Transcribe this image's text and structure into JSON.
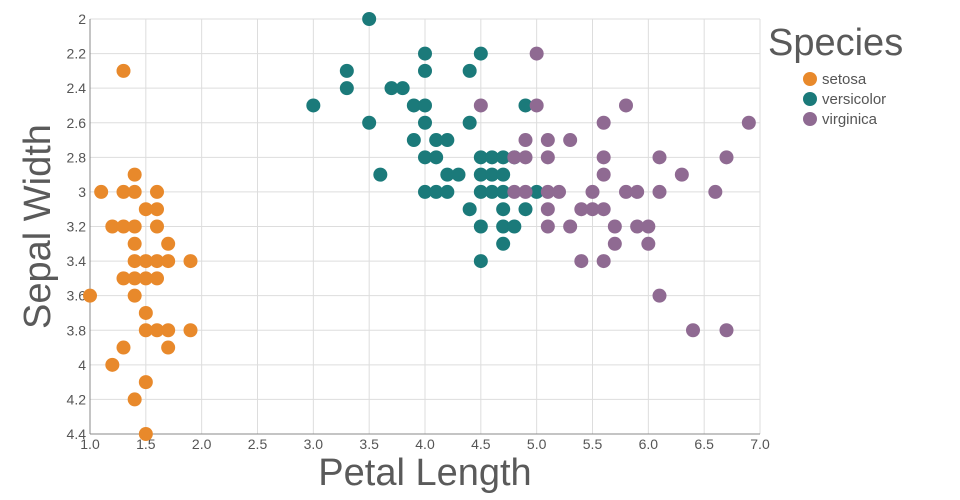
{
  "chart_data": {
    "type": "scatter",
    "xlabel": "Petal Length",
    "ylabel": "Sepal Width",
    "xlim": [
      1.0,
      7.0
    ],
    "ylim": [
      2.0,
      4.4
    ],
    "y_reversed": true,
    "x_ticks": [
      "1.0",
      "1.5",
      "2.0",
      "2.5",
      "3.0",
      "3.5",
      "4.0",
      "4.5",
      "5.0",
      "5.5",
      "6.0",
      "6.5",
      "7.0"
    ],
    "y_ticks": [
      "2",
      "2.2",
      "2.4",
      "2.6",
      "2.8",
      "3",
      "3.2",
      "3.4",
      "3.6",
      "3.8",
      "4",
      "4.2",
      "4.4"
    ],
    "grid": true,
    "legend": {
      "title": "Species",
      "placement": "right"
    },
    "series": [
      {
        "name": "setosa",
        "color": "#e8892b",
        "points": [
          [
            1.3,
            2.3
          ],
          [
            1.1,
            3.0
          ],
          [
            1.3,
            3.0
          ],
          [
            1.4,
            3.0
          ],
          [
            1.6,
            3.0
          ],
          [
            1.4,
            2.9
          ],
          [
            1.5,
            3.1
          ],
          [
            1.6,
            3.1
          ],
          [
            1.2,
            3.2
          ],
          [
            1.3,
            3.2
          ],
          [
            1.4,
            3.2
          ],
          [
            1.6,
            3.2
          ],
          [
            1.4,
            3.3
          ],
          [
            1.7,
            3.3
          ],
          [
            1.4,
            3.4
          ],
          [
            1.5,
            3.4
          ],
          [
            1.6,
            3.4
          ],
          [
            1.7,
            3.4
          ],
          [
            1.9,
            3.4
          ],
          [
            1.3,
            3.5
          ],
          [
            1.4,
            3.5
          ],
          [
            1.5,
            3.5
          ],
          [
            1.6,
            3.5
          ],
          [
            1.0,
            3.6
          ],
          [
            1.4,
            3.6
          ],
          [
            1.5,
            3.7
          ],
          [
            1.5,
            3.8
          ],
          [
            1.6,
            3.8
          ],
          [
            1.7,
            3.8
          ],
          [
            1.9,
            3.8
          ],
          [
            1.3,
            3.9
          ],
          [
            1.7,
            3.9
          ],
          [
            1.2,
            4.0
          ],
          [
            1.5,
            4.1
          ],
          [
            1.4,
            4.2
          ],
          [
            1.5,
            4.4
          ]
        ]
      },
      {
        "name": "versicolor",
        "color": "#1b7a7a",
        "points": [
          [
            3.5,
            2.0
          ],
          [
            4.0,
            2.2
          ],
          [
            4.5,
            2.2
          ],
          [
            3.3,
            2.3
          ],
          [
            4.0,
            2.3
          ],
          [
            4.4,
            2.3
          ],
          [
            3.3,
            2.4
          ],
          [
            3.7,
            2.4
          ],
          [
            3.8,
            2.4
          ],
          [
            3.0,
            2.5
          ],
          [
            3.9,
            2.5
          ],
          [
            4.0,
            2.5
          ],
          [
            4.9,
            2.5
          ],
          [
            3.5,
            2.6
          ],
          [
            4.0,
            2.6
          ],
          [
            4.4,
            2.6
          ],
          [
            3.9,
            2.7
          ],
          [
            4.1,
            2.7
          ],
          [
            4.2,
            2.7
          ],
          [
            4.0,
            2.8
          ],
          [
            4.1,
            2.8
          ],
          [
            4.5,
            2.8
          ],
          [
            4.6,
            2.8
          ],
          [
            4.7,
            2.8
          ],
          [
            4.8,
            2.8
          ],
          [
            3.6,
            2.9
          ],
          [
            4.2,
            2.9
          ],
          [
            4.3,
            2.9
          ],
          [
            4.5,
            2.9
          ],
          [
            4.6,
            2.9
          ],
          [
            4.7,
            2.9
          ],
          [
            4.0,
            3.0
          ],
          [
            4.1,
            3.0
          ],
          [
            4.2,
            3.0
          ],
          [
            4.5,
            3.0
          ],
          [
            4.6,
            3.0
          ],
          [
            4.7,
            3.0
          ],
          [
            5.0,
            3.0
          ],
          [
            4.4,
            3.1
          ],
          [
            4.7,
            3.1
          ],
          [
            4.9,
            3.1
          ],
          [
            4.5,
            3.2
          ],
          [
            4.7,
            3.2
          ],
          [
            4.8,
            3.2
          ],
          [
            4.7,
            3.3
          ],
          [
            4.5,
            3.4
          ]
        ]
      },
      {
        "name": "virginica",
        "color": "#8f6a92",
        "points": [
          [
            5.0,
            2.2
          ],
          [
            4.5,
            2.5
          ],
          [
            5.0,
            2.5
          ],
          [
            5.8,
            2.5
          ],
          [
            5.6,
            2.6
          ],
          [
            6.9,
            2.6
          ],
          [
            4.9,
            2.7
          ],
          [
            5.1,
            2.7
          ],
          [
            5.3,
            2.7
          ],
          [
            4.8,
            2.8
          ],
          [
            4.9,
            2.8
          ],
          [
            5.1,
            2.8
          ],
          [
            5.6,
            2.8
          ],
          [
            6.1,
            2.8
          ],
          [
            6.7,
            2.8
          ],
          [
            5.6,
            2.9
          ],
          [
            6.3,
            2.9
          ],
          [
            4.8,
            3.0
          ],
          [
            4.9,
            3.0
          ],
          [
            5.1,
            3.0
          ],
          [
            5.2,
            3.0
          ],
          [
            5.5,
            3.0
          ],
          [
            5.8,
            3.0
          ],
          [
            5.9,
            3.0
          ],
          [
            6.1,
            3.0
          ],
          [
            6.6,
            3.0
          ],
          [
            5.1,
            3.1
          ],
          [
            5.4,
            3.1
          ],
          [
            5.5,
            3.1
          ],
          [
            5.6,
            3.1
          ],
          [
            5.1,
            3.2
          ],
          [
            5.3,
            3.2
          ],
          [
            5.7,
            3.2
          ],
          [
            5.9,
            3.2
          ],
          [
            6.0,
            3.2
          ],
          [
            5.7,
            3.3
          ],
          [
            6.0,
            3.3
          ],
          [
            5.4,
            3.4
          ],
          [
            5.6,
            3.4
          ],
          [
            6.1,
            3.6
          ],
          [
            6.4,
            3.8
          ],
          [
            6.7,
            3.8
          ]
        ]
      }
    ]
  }
}
